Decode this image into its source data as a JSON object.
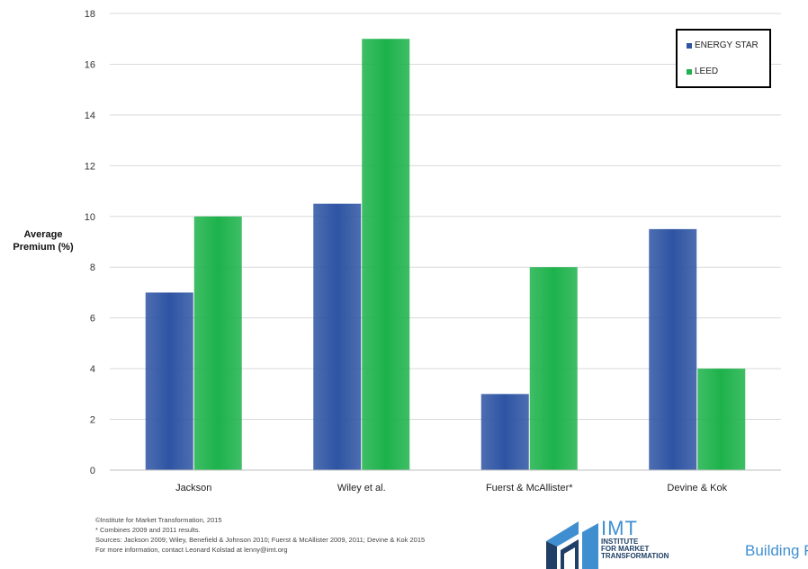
{
  "chart_data": {
    "type": "bar",
    "title": "",
    "xlabel": "",
    "ylabel": "Average Premium (%)",
    "ylabel_lines": [
      "Average",
      "Premium (%)"
    ],
    "categories": [
      "Jackson",
      "Wiley et al.",
      "Fuerst & McAllister*",
      "Devine & Kok"
    ],
    "series": [
      {
        "name": "ENERGY STAR",
        "values": [
          7,
          10.5,
          3,
          9.5
        ],
        "color": "#2e54a3"
      },
      {
        "name": "LEED",
        "values": [
          10,
          17,
          8,
          4
        ],
        "color": "#1db24b"
      }
    ],
    "ylim": [
      0,
      18
    ],
    "yticks": [
      0,
      2,
      4,
      6,
      8,
      10,
      12,
      14,
      16,
      18
    ],
    "grid": true,
    "legend_position": "top-right"
  },
  "footer": {
    "lines": [
      "©Institute for Market Transformation, 2015",
      "* Combines 2009 and 2011 results.",
      "Sources: Jackson 2009; Wiley, Benefield & Johnson 2010; Fuerst & McAllister 2009, 2011; Devine & Kok 2015",
      "For more information, contact Leonard Kolstad at lenny@imt.org"
    ]
  },
  "logo": {
    "abbr": "IMT",
    "line1": "INSTITUTE",
    "line2": "FOR MARKET",
    "line3": "TRANSFORMATION"
  },
  "partner_text": "Building R"
}
